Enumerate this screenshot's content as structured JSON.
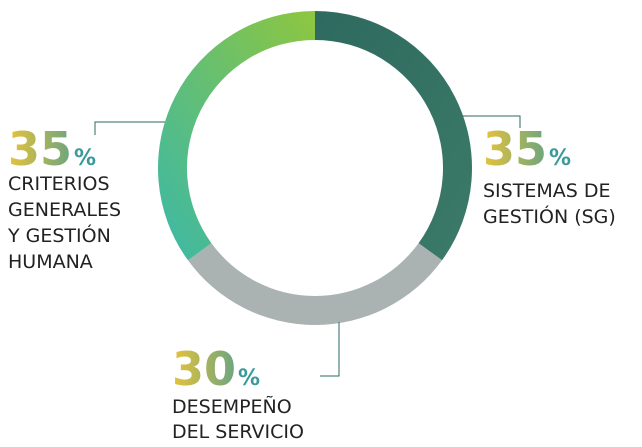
{
  "chart_data": {
    "type": "donut",
    "categories": [
      [
        "SISTEMAS DE",
        "GESTIÓN (SG)"
      ],
      [
        "DESEMPEÑO",
        "DEL SERVICIO"
      ],
      [
        "CRITERIOS",
        "GENERALES",
        "Y GESTIÓN",
        "HUMANA"
      ]
    ],
    "values": [
      35,
      30,
      35
    ],
    "unit": "%",
    "colors": [
      [
        "#2e6a5f",
        "#3b7a68"
      ],
      [
        "#aab2b2",
        "#aab2b2"
      ],
      [
        "#3bb8a8",
        "#8ec63f"
      ]
    ],
    "number_colors": [
      "#e9c33a",
      "#3a9a9a"
    ]
  }
}
